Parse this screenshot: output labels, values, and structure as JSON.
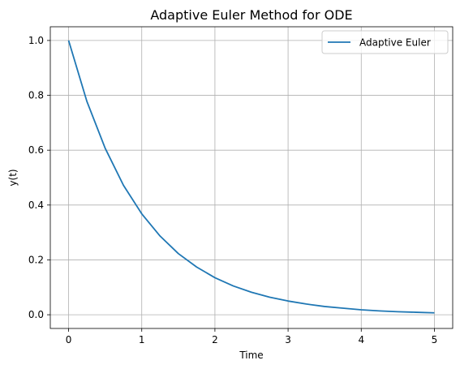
{
  "chart_data": {
    "type": "line",
    "title": "Adaptive Euler Method for ODE",
    "xlabel": "Time",
    "ylabel": "y(t)",
    "xlim": [
      -0.25,
      5.25
    ],
    "ylim": [
      -0.05,
      1.05
    ],
    "xticks": [
      "0",
      "1",
      "2",
      "3",
      "4",
      "5"
    ],
    "yticks": [
      "0.0",
      "0.2",
      "0.4",
      "0.6",
      "0.8",
      "1.0"
    ],
    "grid": true,
    "legend_position": "top-right",
    "series": [
      {
        "name": "Adaptive Euler",
        "color": "#1f77b4",
        "x": [
          0,
          0.25,
          0.5,
          0.75,
          1.0,
          1.25,
          1.5,
          1.75,
          2.0,
          2.25,
          2.5,
          2.75,
          3.0,
          3.25,
          3.5,
          3.75,
          4.0,
          4.25,
          4.5,
          4.75,
          5.0
        ],
        "y": [
          1.0,
          0.778,
          0.607,
          0.472,
          0.368,
          0.287,
          0.223,
          0.174,
          0.135,
          0.105,
          0.082,
          0.064,
          0.05,
          0.039,
          0.03,
          0.024,
          0.018,
          0.014,
          0.011,
          0.009,
          0.007
        ]
      }
    ]
  }
}
